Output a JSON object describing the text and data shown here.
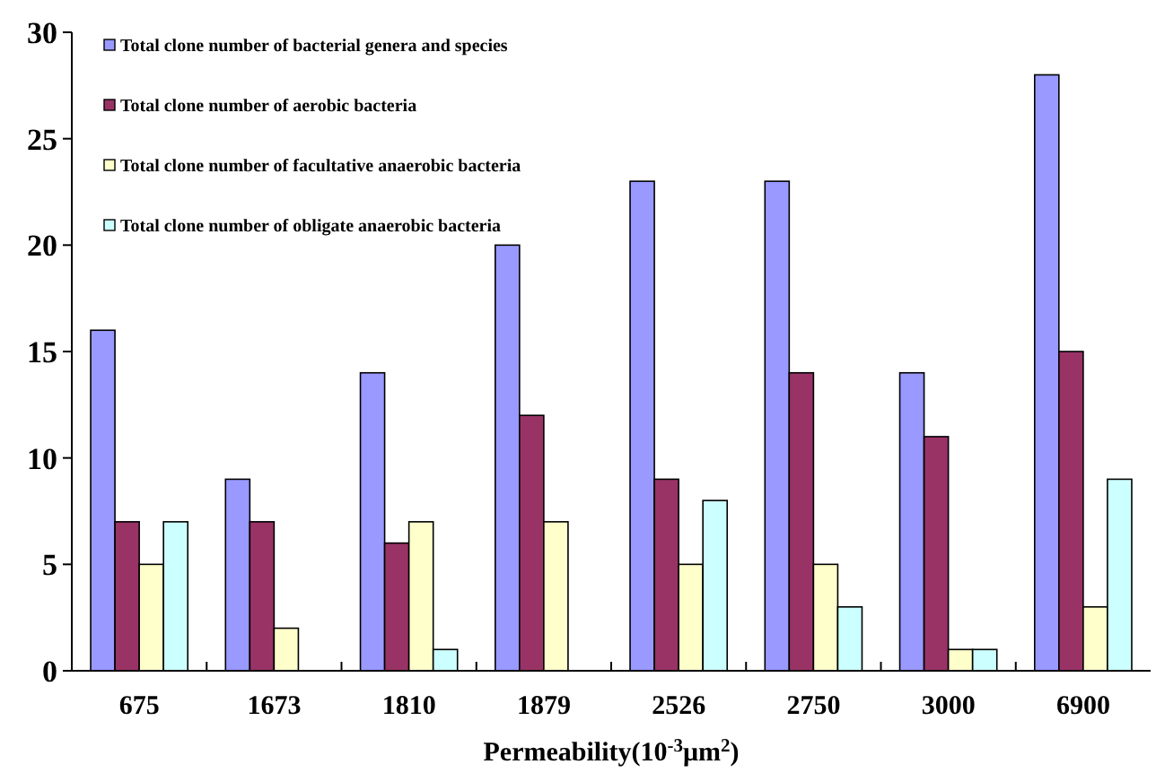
{
  "chart_data": {
    "type": "bar",
    "xlabel": "Permeability(10$^{-3}$μm$^{2}$)",
    "categories": [
      "675",
      "1673",
      "1810",
      "1879",
      "2526",
      "2750",
      "3000",
      "6900"
    ],
    "series": [
      {
        "name": "Total clone number of bacterial genera and species",
        "color": "#9999ff",
        "values": [
          16,
          9,
          14,
          20,
          23,
          23,
          14,
          28
        ]
      },
      {
        "name": "Total clone number of aerobic bacteria",
        "color": "#993366",
        "values": [
          7,
          7,
          6,
          12,
          9,
          14,
          11,
          15
        ]
      },
      {
        "name": "Total clone number of facultative anaerobic bacteria",
        "color": "#ffffcc",
        "values": [
          5,
          2,
          7,
          7,
          5,
          5,
          1,
          3
        ]
      },
      {
        "name": "Total clone number of obligate anaerobic bacteria",
        "color": "#ccffff",
        "values": [
          7,
          0,
          1,
          0,
          8,
          3,
          1,
          9
        ]
      }
    ],
    "ylim": [
      0,
      30
    ],
    "yticks": [
      0,
      5,
      10,
      15,
      20,
      25,
      30
    ],
    "grid": false,
    "legend": "top left"
  }
}
